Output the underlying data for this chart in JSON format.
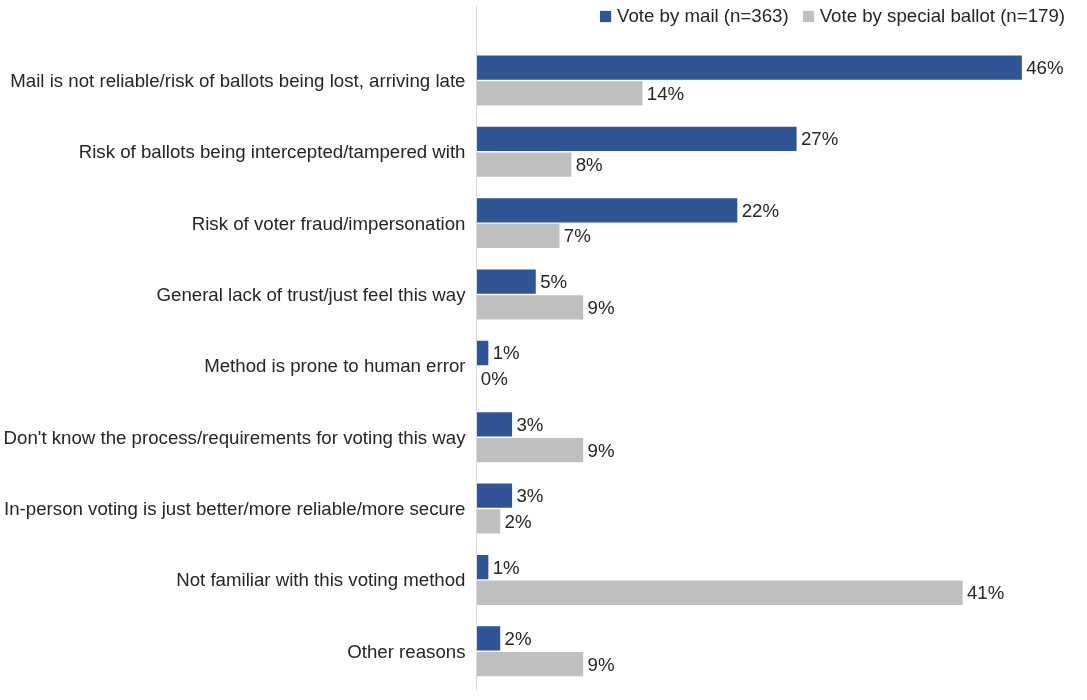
{
  "chart_data": {
    "type": "bar",
    "orientation": "horizontal",
    "categories": [
      "Mail is not reliable/risk of ballots being lost, arriving late",
      "Risk of ballots being intercepted/tampered with",
      "Risk of voter fraud/impersonation",
      "General lack of trust/just feel this way",
      "Method is prone to human error",
      "Don't know the process/requirements for voting this way",
      "In-person voting is just better/more reliable/more secure",
      "Not familiar with this voting method",
      "Other reasons"
    ],
    "series": [
      {
        "name": "Vote by mail (n=363)",
        "color": "#2f5597",
        "values": [
          46,
          27,
          22,
          5,
          1,
          3,
          3,
          1,
          2
        ],
        "value_labels": [
          "46%",
          "27%",
          "22%",
          "5%",
          "1%",
          "3%",
          "3%",
          "1%",
          "2%"
        ]
      },
      {
        "name": "Vote by special ballot (n=179)",
        "color": "#bfbfbf",
        "values": [
          14,
          8,
          7,
          9,
          0,
          9,
          2,
          41,
          9
        ],
        "value_labels": [
          "14%",
          "8%",
          "7%",
          "9%",
          "0%",
          "9%",
          "2%",
          "41%",
          "9%"
        ]
      }
    ],
    "legend": "top right",
    "grid": false
  }
}
